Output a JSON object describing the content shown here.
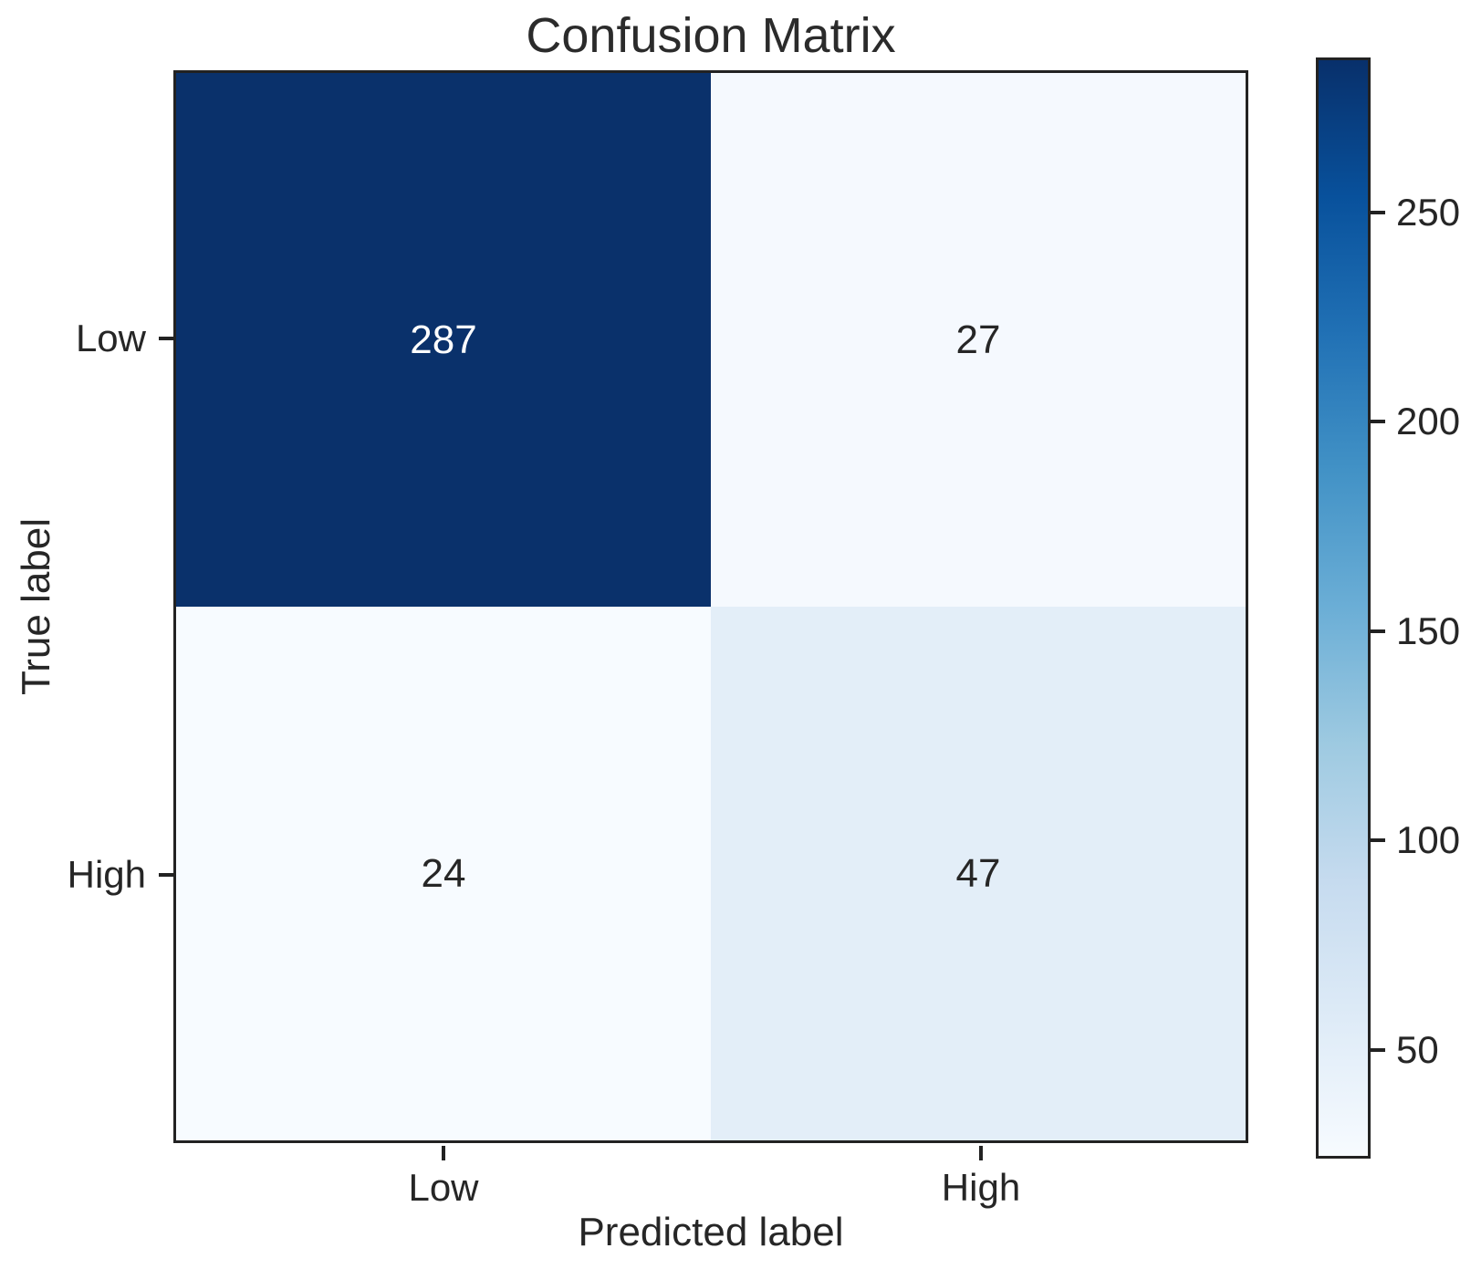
{
  "chart_data": {
    "type": "heatmap",
    "title": "Confusion Matrix",
    "xlabel": "Predicted label",
    "ylabel": "True label",
    "x_tick_labels": [
      "Low",
      "High"
    ],
    "y_tick_labels": [
      "Low",
      "High"
    ],
    "matrix": [
      [
        287,
        27
      ],
      [
        24,
        47
      ]
    ],
    "rows_meaning": "true label (Low, High)",
    "cols_meaning": "predicted label (Low, High)",
    "colormap": "Blues",
    "vmin": 24,
    "vmax": 287,
    "colorbar_ticks": [
      250,
      200,
      150,
      100,
      50
    ],
    "colorbar_position": "right",
    "cell_colors": [
      [
        "#0a316b",
        "#f5f9fe"
      ],
      [
        "#f7fbff",
        "#e3eef8"
      ]
    ],
    "cell_text_colors": [
      [
        "#ffffff",
        "#262626"
      ],
      [
        "#262626",
        "#262626"
      ]
    ],
    "colormap_stops_top_to_bottom": [
      "#08306b",
      "#08519c",
      "#2171b5",
      "#4292c6",
      "#6baed6",
      "#9ecae1",
      "#c6dbef",
      "#deebf7",
      "#f7fbff"
    ],
    "grid": false,
    "background_color": "#ffffff",
    "spine_color": "#222222",
    "text_color": "#262626"
  }
}
